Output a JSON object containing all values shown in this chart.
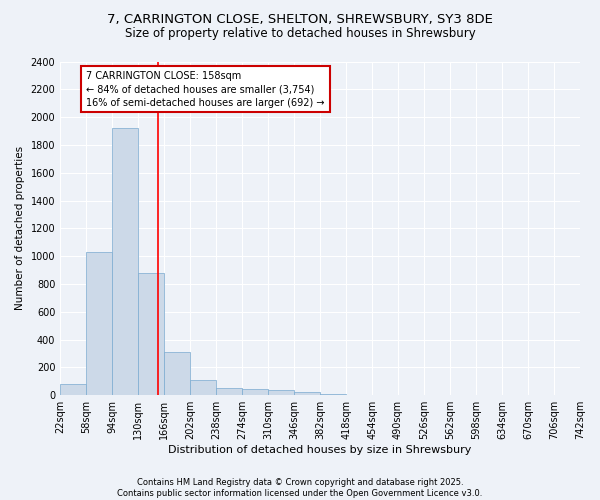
{
  "title_line1": "7, CARRINGTON CLOSE, SHELTON, SHREWSBURY, SY3 8DE",
  "title_line2": "Size of property relative to detached houses in Shrewsbury",
  "xlabel": "Distribution of detached houses by size in Shrewsbury",
  "ylabel": "Number of detached properties",
  "bar_color": "#ccd9e8",
  "bar_edge_color": "#7aaad0",
  "background_color": "#eef2f8",
  "grid_color": "#ffffff",
  "red_line_x": 158,
  "annotation_text": "7 CARRINGTON CLOSE: 158sqm\n← 84% of detached houses are smaller (3,754)\n16% of semi-detached houses are larger (692) →",
  "bin_edges": [
    22,
    58,
    94,
    130,
    166,
    202,
    238,
    274,
    310,
    346,
    382,
    418,
    454,
    490,
    526,
    562,
    598,
    634,
    670,
    706,
    742
  ],
  "bin_heights": [
    80,
    1030,
    1920,
    880,
    310,
    110,
    50,
    45,
    35,
    20,
    10,
    5,
    3,
    2,
    2,
    1,
    1,
    1,
    0,
    0
  ],
  "ylim": [
    0,
    2400
  ],
  "yticks": [
    0,
    200,
    400,
    600,
    800,
    1000,
    1200,
    1400,
    1600,
    1800,
    2000,
    2200,
    2400
  ],
  "footer_text": "Contains HM Land Registry data © Crown copyright and database right 2025.\nContains public sector information licensed under the Open Government Licence v3.0.",
  "annotation_box_color": "#ffffff",
  "annotation_box_edge": "#cc0000",
  "title1_fontsize": 9.5,
  "title2_fontsize": 8.5,
  "ylabel_fontsize": 7.5,
  "xlabel_fontsize": 8,
  "tick_fontsize": 7,
  "annot_fontsize": 7,
  "footer_fontsize": 6
}
